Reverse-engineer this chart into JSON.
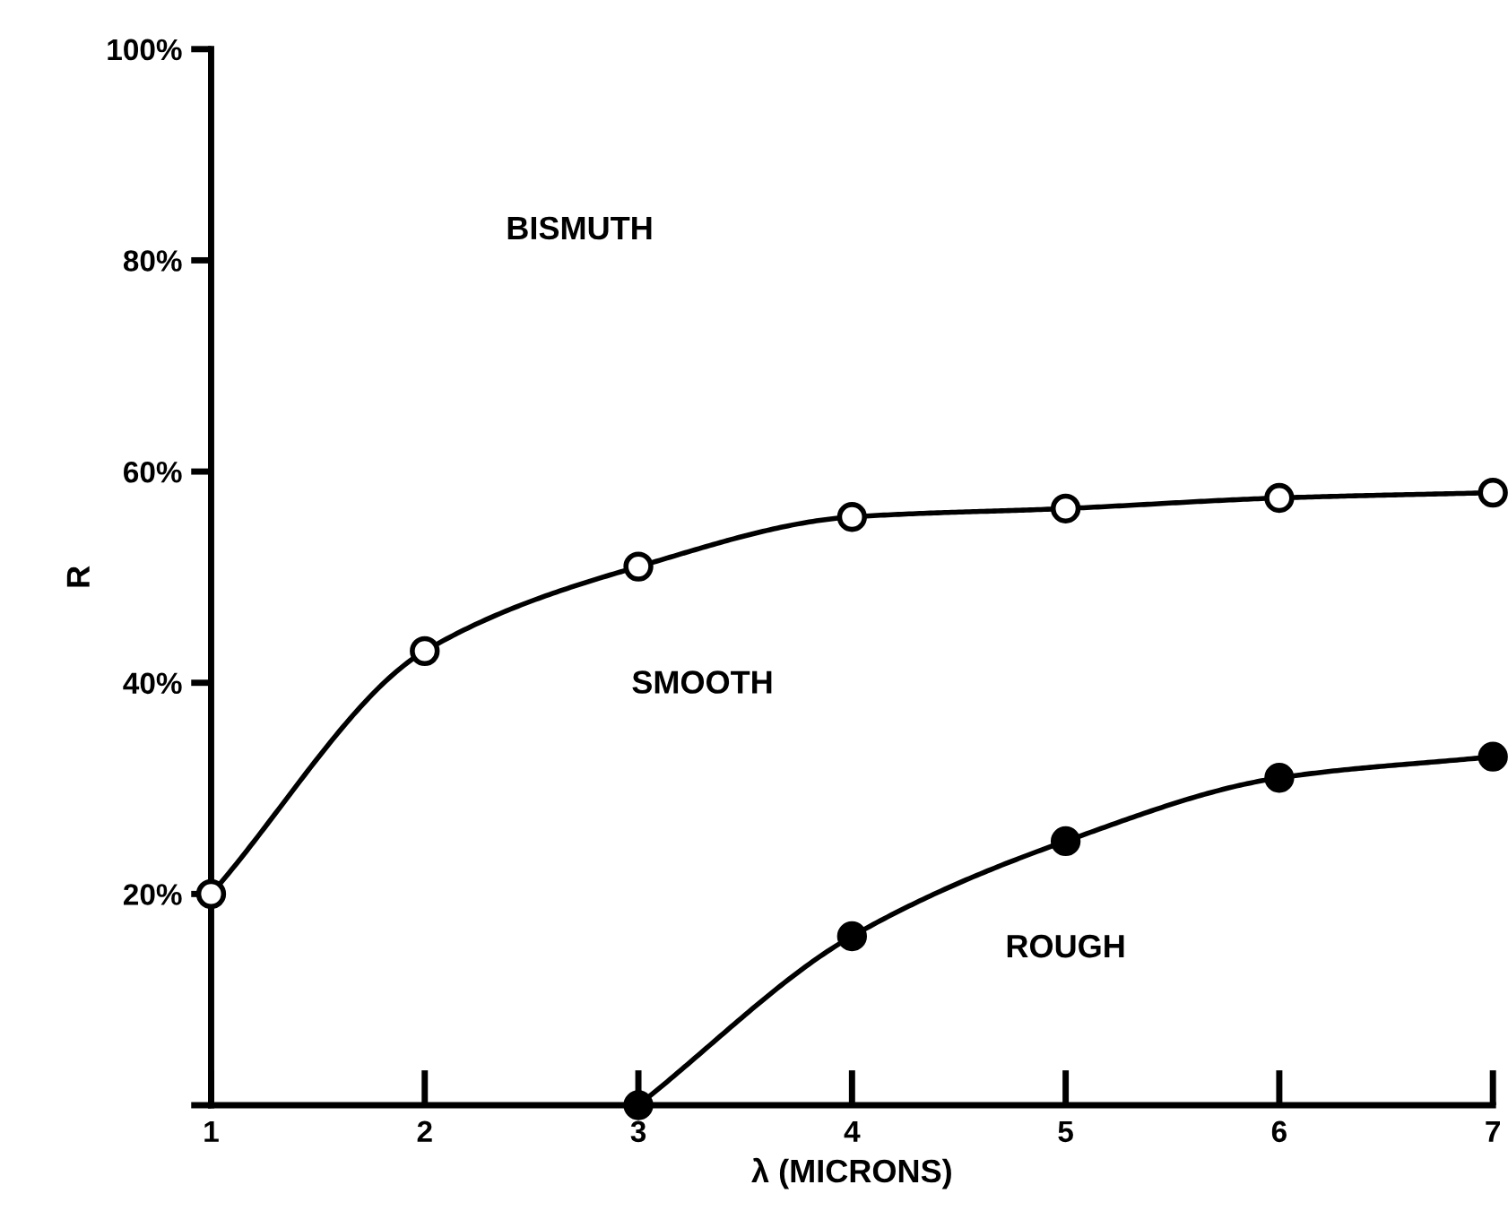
{
  "chart_data": {
    "type": "line",
    "xlabel": "λ (MICRONS)",
    "ylabel": "R",
    "annotations": [
      "BISMUTH"
    ],
    "x": [
      1,
      2,
      3,
      4,
      5,
      6,
      7
    ],
    "series": [
      {
        "name": "SMOOTH",
        "color": "#000000",
        "values": [
          20,
          43,
          51,
          55.7,
          56.5,
          57.5,
          58
        ]
      },
      {
        "name": "ROUGH",
        "color": "#000000",
        "x": [
          3,
          4,
          5,
          6,
          7
        ],
        "values": [
          0,
          16,
          25,
          31,
          33
        ]
      }
    ],
    "xlim": [
      1,
      7
    ],
    "ylim": [
      0,
      100
    ],
    "xticks": [
      1,
      2,
      3,
      4,
      5,
      6,
      7
    ],
    "yticks": [
      {
        "value": 0,
        "label": null
      },
      {
        "value": 20,
        "label": "20%"
      },
      {
        "value": 40,
        "label": "40%"
      },
      {
        "value": 60,
        "label": "60%"
      },
      {
        "value": 80,
        "label": "80%"
      },
      {
        "value": 100,
        "label": "100%"
      }
    ],
    "grid": false,
    "legend": false,
    "marker": "circle",
    "line_style": "solid"
  }
}
